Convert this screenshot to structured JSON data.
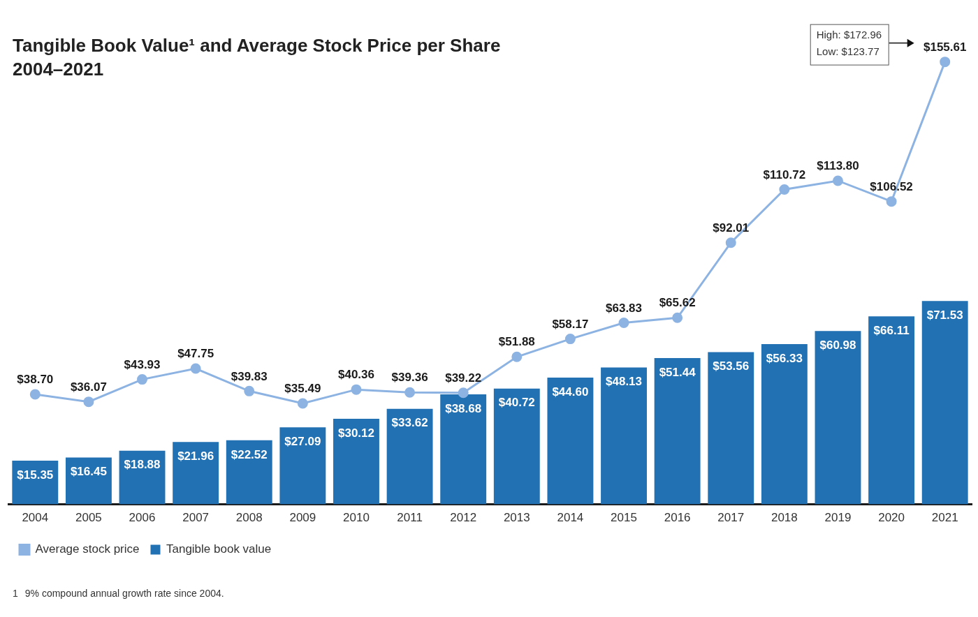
{
  "chart_data": {
    "type": "bar",
    "title": "Tangible Book Value¹ and Average Stock Price per Share",
    "subtitle": "2004–2021",
    "categories": [
      "2004",
      "2005",
      "2006",
      "2007",
      "2008",
      "2009",
      "2010",
      "2011",
      "2012",
      "2013",
      "2014",
      "2015",
      "2016",
      "2017",
      "2018",
      "2019",
      "2020",
      "2021"
    ],
    "series": [
      {
        "name": "Tangible book value",
        "type": "bar",
        "color": "#2271b3",
        "values": [
          15.35,
          16.45,
          18.88,
          21.96,
          22.52,
          27.09,
          30.12,
          33.62,
          38.68,
          40.72,
          44.6,
          48.13,
          51.44,
          53.56,
          56.33,
          60.98,
          66.11,
          71.53
        ],
        "value_labels": [
          "$15.35",
          "$16.45",
          "$18.88",
          "$21.96",
          "$22.52",
          "$27.09",
          "$30.12",
          "$33.62",
          "$38.68",
          "$40.72",
          "$44.60",
          "$48.13",
          "$51.44",
          "$53.56",
          "$56.33",
          "$60.98",
          "$66.11",
          "$71.53"
        ]
      },
      {
        "name": "Average stock price",
        "type": "line",
        "color": "#8db3e2",
        "marker": "circle",
        "values": [
          38.7,
          36.07,
          43.93,
          47.75,
          39.83,
          35.49,
          40.36,
          39.36,
          39.22,
          51.88,
          58.17,
          63.83,
          65.62,
          92.01,
          110.72,
          113.8,
          106.52,
          155.61
        ],
        "value_labels": [
          "$38.70",
          "$36.07",
          "$43.93",
          "$47.75",
          "$39.83",
          "$35.49",
          "$40.36",
          "$39.36",
          "$39.22",
          "$51.88",
          "$58.17",
          "$63.83",
          "$65.62",
          "$92.01",
          "$110.72",
          "$113.80",
          "$106.52",
          "$155.61"
        ]
      }
    ],
    "ylim": [
      0,
      170
    ],
    "grid": false,
    "tick_labels": "x",
    "data_labels": true,
    "legend": "bottom-left",
    "annotation": {
      "lines": [
        "High: $172.96",
        "Low: $123.77"
      ]
    },
    "footnote_mark": "1",
    "footnote": "9% compound annual growth rate since 2004."
  }
}
